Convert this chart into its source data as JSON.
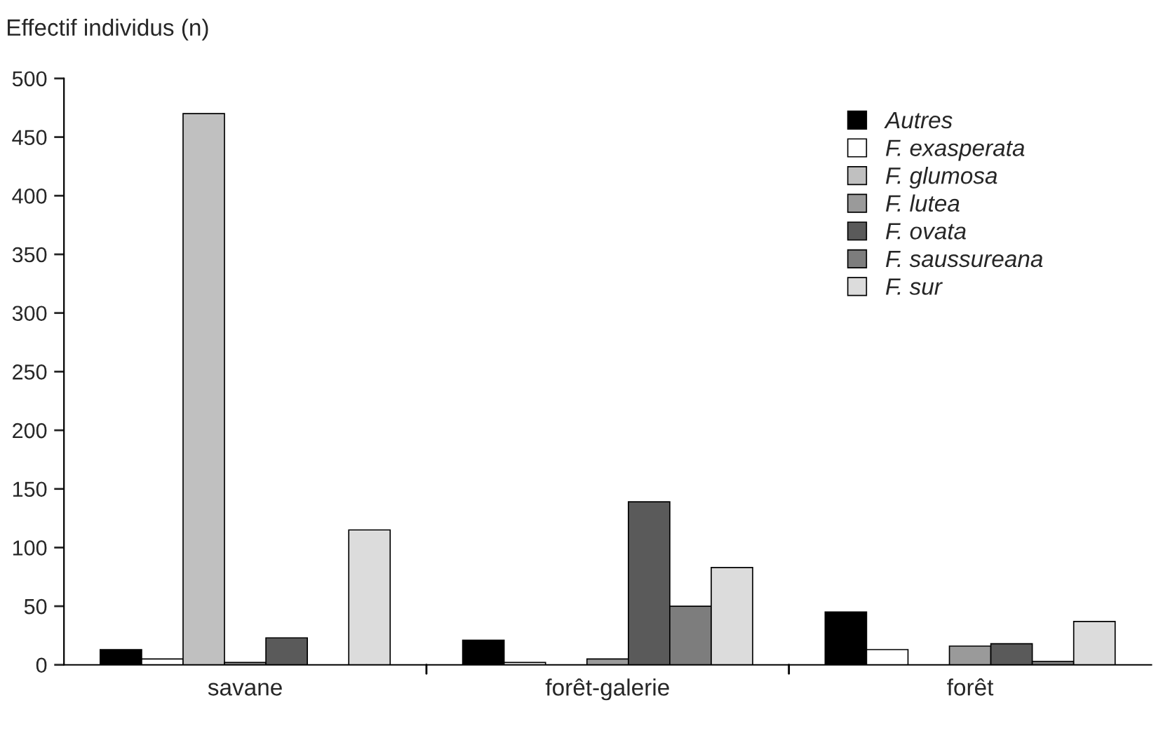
{
  "chart_data": {
    "type": "bar",
    "ylabel": "Effectif individus (n)",
    "categories": [
      "savane",
      "forêt-galerie",
      "forêt"
    ],
    "series": [
      {
        "name": "Autres",
        "color": "#000000",
        "values": [
          13,
          21,
          45
        ]
      },
      {
        "name": "F. exasperata",
        "color": "#ffffff",
        "values": [
          5,
          2,
          13
        ]
      },
      {
        "name": "F. glumosa",
        "color": "#c0c0c0",
        "values": [
          470,
          null,
          null
        ]
      },
      {
        "name": "F. lutea",
        "color": "#9a9a9a",
        "values": [
          2,
          5,
          16
        ]
      },
      {
        "name": "F. ovata",
        "color": "#5a5a5a",
        "values": [
          23,
          139,
          18
        ]
      },
      {
        "name": "F. saussureana",
        "color": "#7d7d7d",
        "values": [
          null,
          50,
          3
        ]
      },
      {
        "name": "F. sur",
        "color": "#dcdcdc",
        "values": [
          115,
          83,
          37
        ]
      }
    ],
    "ylim": [
      0,
      500
    ],
    "yticks": [
      0,
      50,
      100,
      150,
      200,
      250,
      300,
      350,
      400,
      450,
      500
    ],
    "grid": false,
    "legend": "top right"
  }
}
